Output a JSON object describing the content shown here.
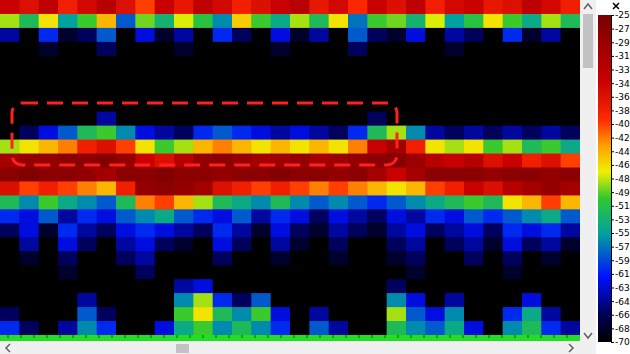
{
  "chart_data": {
    "type": "heatmap",
    "cells": [
      [
        -34,
        -36,
        -33,
        -38,
        -35,
        -32,
        -36,
        -40,
        -34,
        -37,
        -33,
        -35,
        -38,
        -36,
        -34,
        -32,
        -37,
        -35,
        -39,
        -34,
        -36,
        -33,
        -38,
        -35,
        -34,
        -37,
        -36,
        -33,
        -35,
        -38
      ],
      [
        -48,
        -52,
        -46,
        -55,
        -50,
        -44,
        -58,
        -49,
        -53,
        -47,
        -51,
        -56,
        -45,
        -50,
        -54,
        -48,
        -52,
        -46,
        -57,
        -50,
        -49,
        -53,
        -47,
        -55,
        -51,
        -46,
        -50,
        -54,
        -48,
        -52
      ],
      [
        -64,
        -70,
        -60,
        -68,
        -66,
        -58,
        -70,
        -62,
        -68,
        -64,
        -70,
        -60,
        -66,
        -70,
        -62,
        -68,
        -64,
        -70,
        -58,
        -66,
        -68,
        -62,
        -70,
        -64,
        -66,
        -70,
        -60,
        -68,
        -64,
        -70
      ],
      [
        -70,
        -70,
        -68,
        -70,
        -70,
        -66,
        -70,
        -70,
        -70,
        -68,
        -70,
        -70,
        -70,
        -70,
        -68,
        -70,
        -70,
        -70,
        -66,
        -70,
        -70,
        -70,
        -70,
        -68,
        -70,
        -70,
        -70,
        -70,
        -70,
        -70
      ],
      [
        -70,
        -70,
        -70,
        -70,
        -70,
        -70,
        -70,
        -70,
        -70,
        -70,
        -70,
        -70,
        -70,
        -70,
        -70,
        -70,
        -70,
        -70,
        -70,
        -70,
        -70,
        -70,
        -70,
        -70,
        -70,
        -70,
        -70,
        -70,
        -70,
        -70
      ],
      [
        -70,
        -70,
        -70,
        -70,
        -70,
        -70,
        -70,
        -70,
        -70,
        -70,
        -70,
        -70,
        -70,
        -70,
        -70,
        -70,
        -70,
        -70,
        -70,
        -70,
        -70,
        -70,
        -70,
        -70,
        -70,
        -70,
        -70,
        -70,
        -70,
        -70
      ],
      [
        -70,
        -70,
        -70,
        -70,
        -70,
        -70,
        -70,
        -70,
        -70,
        -70,
        -70,
        -70,
        -70,
        -70,
        -70,
        -70,
        -70,
        -70,
        -70,
        -70,
        -70,
        -70,
        -70,
        -70,
        -70,
        -70,
        -70,
        -70,
        -70,
        -70
      ],
      [
        -70,
        -70,
        -70,
        -70,
        -70,
        -70,
        -70,
        -70,
        -70,
        -70,
        -70,
        -70,
        -70,
        -70,
        -70,
        -70,
        -70,
        -70,
        -70,
        -70,
        -70,
        -70,
        -70,
        -70,
        -70,
        -70,
        -70,
        -70,
        -70,
        -70
      ],
      [
        -70,
        -70,
        -70,
        -70,
        -70,
        -64,
        -70,
        -70,
        -70,
        -70,
        -70,
        -70,
        -70,
        -70,
        -70,
        -70,
        -70,
        -70,
        -70,
        -66,
        -70,
        -70,
        -70,
        -70,
        -70,
        -70,
        -70,
        -70,
        -70,
        -70
      ],
      [
        -70,
        -66,
        -62,
        -58,
        -52,
        -50,
        -56,
        -62,
        -64,
        -66,
        -60,
        -58,
        -60,
        -62,
        -64,
        -62,
        -64,
        -66,
        -60,
        -52,
        -48,
        -56,
        -64,
        -66,
        -64,
        -66,
        -64,
        -66,
        -64,
        -66
      ],
      [
        -48,
        -46,
        -44,
        -42,
        -38,
        -36,
        -40,
        -46,
        -50,
        -48,
        -44,
        -42,
        -44,
        -46,
        -44,
        -46,
        -44,
        -46,
        -42,
        -34,
        -30,
        -38,
        -46,
        -48,
        -46,
        -50,
        -48,
        -52,
        -50,
        -54
      ],
      [
        -30,
        -28,
        -28,
        -27,
        -27,
        -26,
        -28,
        -34,
        -36,
        -32,
        -28,
        -27,
        -28,
        -30,
        -29,
        -28,
        -30,
        -29,
        -28,
        -27,
        -27,
        -29,
        -32,
        -34,
        -32,
        -36,
        -34,
        -38,
        -36,
        -40
      ],
      [
        -27,
        -26,
        -27,
        -27,
        -28,
        -30,
        -27,
        -27,
        -26,
        -27,
        -27,
        -28,
        -27,
        -27,
        -26,
        -27,
        -27,
        -28,
        -27,
        -30,
        -34,
        -30,
        -27,
        -27,
        -27,
        -28,
        -27,
        -27,
        -28,
        -27
      ],
      [
        -36,
        -40,
        -38,
        -40,
        -42,
        -44,
        -38,
        -28,
        -27,
        -28,
        -30,
        -36,
        -38,
        -40,
        -38,
        -40,
        -42,
        -40,
        -42,
        -44,
        -46,
        -44,
        -40,
        -38,
        -34,
        -36,
        -32,
        -30,
        -28,
        -30
      ],
      [
        -52,
        -56,
        -50,
        -54,
        -56,
        -58,
        -52,
        -42,
        -40,
        -44,
        -48,
        -52,
        -54,
        -56,
        -52,
        -56,
        -58,
        -56,
        -58,
        -60,
        -58,
        -56,
        -54,
        -52,
        -50,
        -52,
        -46,
        -44,
        -40,
        -44
      ],
      [
        -60,
        -62,
        -58,
        -64,
        -60,
        -62,
        -58,
        -56,
        -54,
        -58,
        -60,
        -62,
        -58,
        -64,
        -60,
        -62,
        -66,
        -62,
        -64,
        -66,
        -62,
        -64,
        -60,
        -62,
        -58,
        -60,
        -58,
        -56,
        -54,
        -58
      ],
      [
        -66,
        -62,
        -68,
        -60,
        -64,
        -66,
        -62,
        -60,
        -62,
        -64,
        -66,
        -60,
        -64,
        -68,
        -62,
        -66,
        -68,
        -64,
        -66,
        -68,
        -64,
        -62,
        -66,
        -64,
        -62,
        -66,
        -60,
        -62,
        -60,
        -64
      ],
      [
        -70,
        -64,
        -70,
        -62,
        -66,
        -70,
        -64,
        -62,
        -66,
        -68,
        -70,
        -62,
        -66,
        -70,
        -64,
        -68,
        -70,
        -66,
        -70,
        -70,
        -66,
        -64,
        -70,
        -66,
        -64,
        -68,
        -62,
        -66,
        -64,
        -68
      ],
      [
        -70,
        -68,
        -70,
        -66,
        -70,
        -70,
        -66,
        -64,
        -70,
        -70,
        -70,
        -66,
        -70,
        -70,
        -68,
        -70,
        -70,
        -68,
        -70,
        -70,
        -68,
        -66,
        -70,
        -70,
        -66,
        -70,
        -66,
        -70,
        -68,
        -70
      ],
      [
        -70,
        -70,
        -70,
        -68,
        -70,
        -70,
        -70,
        -66,
        -70,
        -70,
        -70,
        -70,
        -70,
        -70,
        -70,
        -70,
        -70,
        -70,
        -70,
        -70,
        -70,
        -68,
        -70,
        -70,
        -70,
        -70,
        -68,
        -70,
        -70,
        -70
      ],
      [
        -70,
        -70,
        -70,
        -70,
        -70,
        -70,
        -70,
        -70,
        -70,
        -64,
        -62,
        -70,
        -70,
        -70,
        -70,
        -70,
        -70,
        -70,
        -70,
        -70,
        -66,
        -70,
        -70,
        -70,
        -70,
        -70,
        -70,
        -70,
        -70,
        -70
      ],
      [
        -70,
        -70,
        -70,
        -70,
        -64,
        -70,
        -70,
        -70,
        -70,
        -56,
        -48,
        -60,
        -66,
        -58,
        -70,
        -70,
        -70,
        -70,
        -70,
        -70,
        -56,
        -62,
        -70,
        -64,
        -70,
        -70,
        -70,
        -62,
        -70,
        -70
      ],
      [
        -66,
        -70,
        -70,
        -70,
        -58,
        -66,
        -70,
        -70,
        -70,
        -50,
        -46,
        -52,
        -56,
        -50,
        -62,
        -70,
        -64,
        -70,
        -70,
        -70,
        -48,
        -58,
        -62,
        -56,
        -70,
        -70,
        -60,
        -54,
        -64,
        -70
      ],
      [
        -60,
        -66,
        -70,
        -64,
        -56,
        -60,
        -70,
        -70,
        -62,
        -54,
        -50,
        -56,
        -52,
        -56,
        -60,
        -70,
        -58,
        -64,
        -70,
        -70,
        -52,
        -56,
        -58,
        -54,
        -62,
        -70,
        -56,
        -52,
        -60,
        -64
      ]
    ],
    "colorbar": {
      "range": [
        -70,
        -25
      ],
      "ticks": [
        -25,
        {
          "value": -26.875,
          "label": "-27"
        },
        {
          "value": -28.75,
          "label": "-29"
        },
        {
          "value": -30.625,
          "label": "-31"
        },
        {
          "value": -32.5,
          "label": "-33"
        },
        {
          "value": -34.375,
          "label": "-34"
        },
        {
          "value": -36.25,
          "label": "-36"
        },
        {
          "value": -38.125,
          "label": "-38"
        },
        -40,
        {
          "value": -41.875,
          "label": "-42"
        },
        {
          "value": -43.75,
          "label": "-44"
        },
        {
          "value": -45.625,
          "label": "-46"
        },
        {
          "value": -47.5,
          "label": "-48"
        },
        {
          "value": -49.375,
          "label": "-49"
        },
        {
          "value": -51.25,
          "label": "-51"
        },
        {
          "value": -53.125,
          "label": "-53"
        },
        -55,
        {
          "value": -56.875,
          "label": "-57"
        },
        {
          "value": -58.75,
          "label": "-59"
        },
        {
          "value": -60.625,
          "label": "-61"
        },
        {
          "value": -62.5,
          "label": "-63"
        },
        {
          "value": -64.375,
          "label": "-64"
        },
        {
          "value": -66.25,
          "label": "-66"
        },
        {
          "value": -68.125,
          "label": "-68"
        },
        -70
      ]
    }
  }
}
